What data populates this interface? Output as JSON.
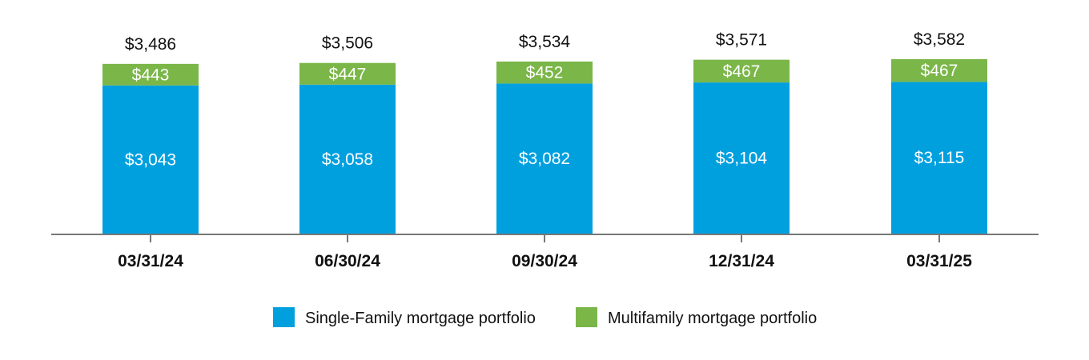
{
  "chart_data": {
    "type": "bar",
    "stacked": true,
    "categories": [
      "03/31/24",
      "06/30/24",
      "09/30/24",
      "12/31/24",
      "03/31/25"
    ],
    "series": [
      {
        "name": "Single-Family mortgage portfolio",
        "color": "#00a0df",
        "values": [
          3043,
          3058,
          3082,
          3104,
          3115
        ],
        "labels": [
          "$3,043",
          "$3,058",
          "$3,082",
          "$3,104",
          "$3,115"
        ]
      },
      {
        "name": "Multifamily mortgage portfolio",
        "color": "#7ab648",
        "values": [
          443,
          447,
          452,
          467,
          467
        ],
        "labels": [
          "$443",
          "$447",
          "$452",
          "$467",
          "$467"
        ]
      }
    ],
    "totals": [
      3486,
      3506,
      3534,
      3571,
      3582
    ],
    "total_labels": [
      "$3,486",
      "$3,506",
      "$3,534",
      "$3,571",
      "$3,582"
    ],
    "title": "",
    "xlabel": "",
    "ylabel": "",
    "grid": false,
    "legend_position": "bottom-center"
  }
}
